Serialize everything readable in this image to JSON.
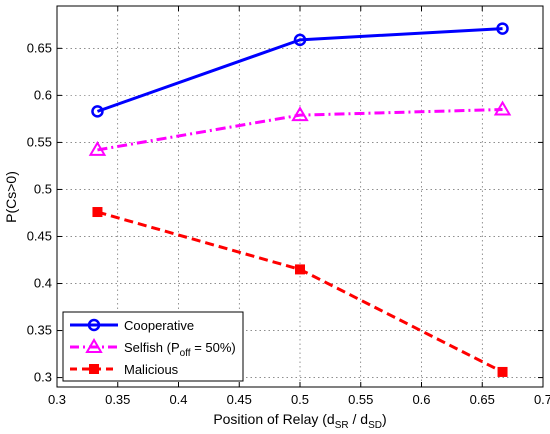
{
  "chart_data": {
    "type": "line",
    "title": "",
    "xlabel": {
      "prefix": "Position of Relay (d",
      "sub1": "SR",
      "mid": " / d",
      "sub2": "SD",
      "suffix": ")"
    },
    "ylabel": "P(Cs>0)",
    "xlim": [
      0.3,
      0.7
    ],
    "ylim": [
      0.29,
      0.695
    ],
    "xticks": [
      0.3,
      0.35,
      0.4,
      0.45,
      0.5,
      0.55,
      0.6,
      0.65,
      0.7
    ],
    "yticks": [
      0.3,
      0.35,
      0.4,
      0.45,
      0.5,
      0.55,
      0.6,
      0.65
    ],
    "grid": true,
    "legend_position": "bottom-left",
    "x": [
      0.3333,
      0.5,
      0.6667
    ],
    "series": [
      {
        "name": "Cooperative",
        "legend": {
          "prefix": "Cooperative",
          "sub": "",
          "suffix": ""
        },
        "values": [
          0.583,
          0.659,
          0.671
        ],
        "color": "#0000ff",
        "line": "solid",
        "marker": "circle"
      },
      {
        "name": "Selfish (Poff = 50%)",
        "legend": {
          "prefix": "Selfish (P",
          "sub": "off",
          "suffix": " = 50%)"
        },
        "values": [
          0.542,
          0.579,
          0.585
        ],
        "color": "#ff00ff",
        "line": "dashdot",
        "marker": "triangle"
      },
      {
        "name": "Malicious",
        "legend": {
          "prefix": "Malicious",
          "sub": "",
          "suffix": ""
        },
        "values": [
          0.476,
          0.415,
          0.306
        ],
        "color": "#ff0000",
        "line": "dashed",
        "marker": "square"
      }
    ]
  }
}
